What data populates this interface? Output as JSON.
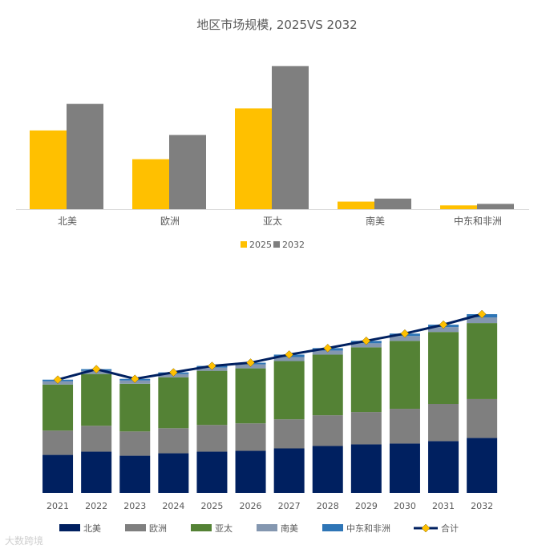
{
  "title": "地区市场规模, 2025VS 2032",
  "watermark": "大数跨境",
  "colors": {
    "2025": "#FFC000",
    "2032": "#7F7F7F",
    "北美": "#002060",
    "欧洲": "#7F7F7F",
    "亚太": "#548235",
    "南美": "#8497B0",
    "中东和非洲": "#2E75B6",
    "合计_line": "#002060",
    "合计_marker": "#FFC000"
  },
  "chart_data": [
    {
      "type": "bar",
      "title": "地区市场规模, 2025VS 2032",
      "categories": [
        "北美",
        "欧洲",
        "亚太",
        "南美",
        "中东和非洲"
      ],
      "series": [
        {
          "name": "2025",
          "values": [
            104,
            66,
            133,
            10,
            5
          ]
        },
        {
          "name": "2032",
          "values": [
            139,
            98,
            189,
            14,
            7
          ]
        }
      ],
      "ylim": [
        0,
        200
      ],
      "legend": "bottom",
      "grid": false
    },
    {
      "type": "bar",
      "stacked": true,
      "categories": [
        "2021",
        "2022",
        "2023",
        "2024",
        "2025",
        "2026",
        "2027",
        "2028",
        "2029",
        "2030",
        "2031",
        "2032"
      ],
      "series": [
        {
          "name": "北美",
          "values": [
            47,
            51,
            46,
            49,
            51,
            52,
            55,
            58,
            60,
            61,
            64,
            68
          ]
        },
        {
          "name": "欧洲",
          "values": [
            30,
            32,
            30,
            31,
            33,
            34,
            36,
            38,
            40,
            43,
            46,
            48
          ]
        },
        {
          "name": "亚太",
          "values": [
            57,
            64,
            59,
            63,
            67,
            68,
            72,
            75,
            80,
            84,
            89,
            94
          ]
        },
        {
          "name": "南美",
          "values": [
            4,
            4,
            4,
            4,
            4,
            5,
            5,
            5,
            5,
            6,
            6,
            7
          ]
        },
        {
          "name": "中东和非洲",
          "values": [
            2,
            2,
            2,
            2,
            2,
            2,
            3,
            3,
            3,
            3,
            3,
            4
          ]
        }
      ],
      "line": {
        "name": "合计",
        "values": [
          140,
          153,
          141,
          149,
          157,
          161,
          171,
          179,
          188,
          197,
          208,
          221
        ]
      },
      "ylim": [
        0,
        240
      ],
      "legend": "bottom",
      "grid": false
    }
  ]
}
